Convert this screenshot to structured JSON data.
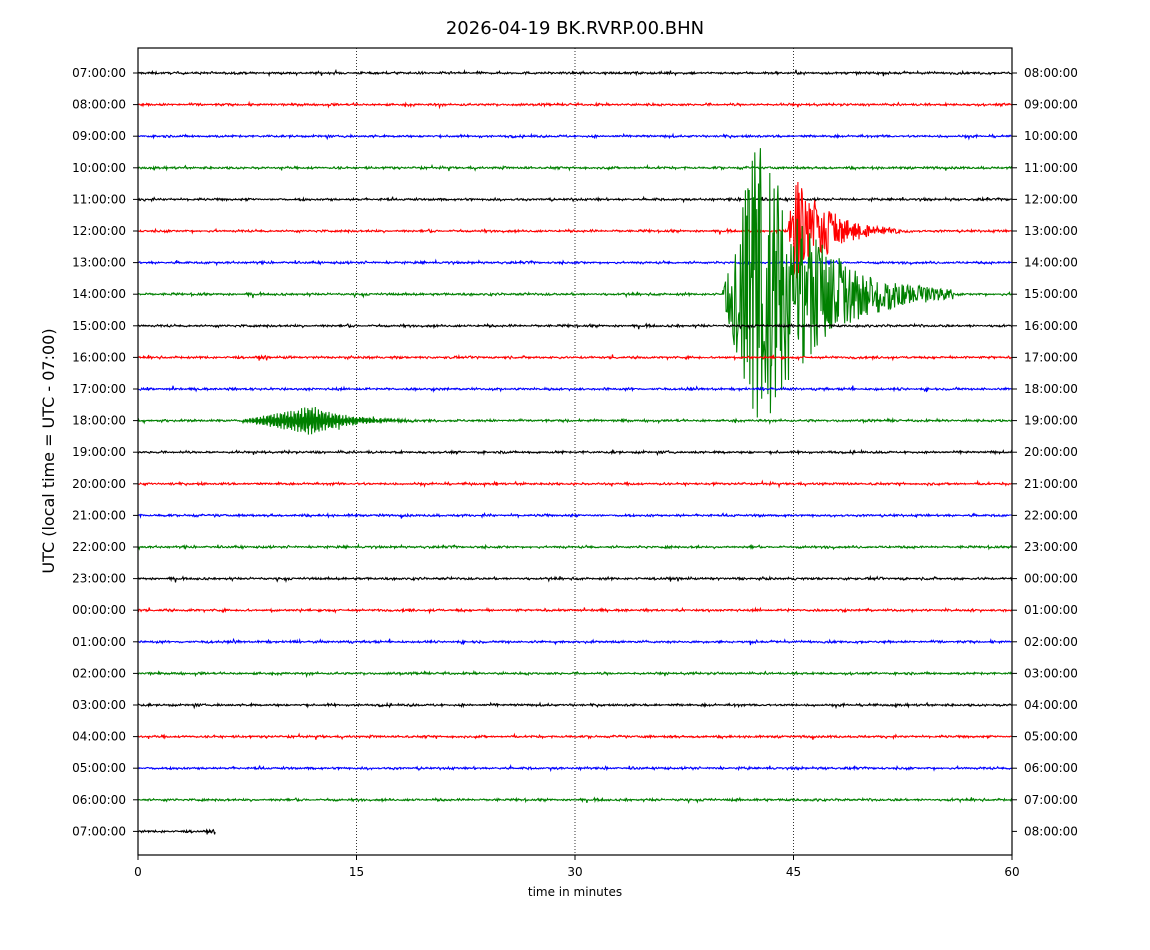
{
  "chart_data": {
    "type": "line",
    "title": "2026-04-19 BK.RVRP.00.BHN",
    "xlabel": "time in minutes",
    "ylabel": "UTC (local time = UTC - 07:00)",
    "xlim": [
      0,
      60
    ],
    "x_ticks": [
      "0",
      "15",
      "30",
      "45",
      "60"
    ],
    "grid": "vertical dotted lines at 15, 30, 45",
    "trace_colors": [
      "#000000",
      "#ff0000",
      "#0000ff",
      "#008000"
    ],
    "left_labels": [
      "07:00:00",
      "08:00:00",
      "09:00:00",
      "10:00:00",
      "11:00:00",
      "12:00:00",
      "13:00:00",
      "14:00:00",
      "15:00:00",
      "16:00:00",
      "17:00:00",
      "18:00:00",
      "19:00:00",
      "20:00:00",
      "21:00:00",
      "22:00:00",
      "23:00:00",
      "00:00:00",
      "01:00:00",
      "02:00:00",
      "03:00:00",
      "04:00:00",
      "05:00:00",
      "06:00:00",
      "07:00:00"
    ],
    "right_labels": [
      "08:00:00",
      "09:00:00",
      "10:00:00",
      "11:00:00",
      "12:00:00",
      "13:00:00",
      "14:00:00",
      "15:00:00",
      "16:00:00",
      "17:00:00",
      "18:00:00",
      "19:00:00",
      "20:00:00",
      "21:00:00",
      "22:00:00",
      "23:00:00",
      "00:00:00",
      "01:00:00",
      "02:00:00",
      "03:00:00",
      "04:00:00",
      "05:00:00",
      "06:00:00",
      "07:00:00",
      "08:00:00"
    ],
    "partial_last_trace_end_minute": 5.3,
    "events": [
      {
        "row": 5,
        "start_minute": 44.6,
        "peak_minute": 45.1,
        "end_minute": 53,
        "peak_amplitude": 1.9
      },
      {
        "row": 7,
        "start_minute": 40.1,
        "peak_minute": 42.5,
        "end_minute": 56,
        "peak_amplitude": 5.0
      },
      {
        "row": 11,
        "start_minute": 7.0,
        "peak_minute": 12.0,
        "end_minute": 20,
        "peak_amplitude": 0.45
      }
    ]
  }
}
